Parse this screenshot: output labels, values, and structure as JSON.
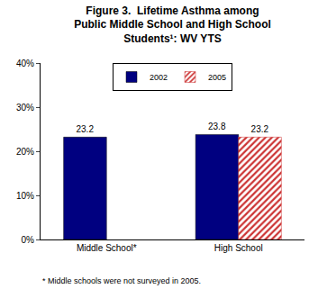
{
  "chart_data": {
    "type": "bar",
    "title": "Figure 3.  Lifetime Asthma among\nPublic Middle School and High School\nStudents¹: WV YTS",
    "categories": [
      "Middle School*",
      "High School"
    ],
    "series": [
      {
        "name": "2002",
        "color": "#000080",
        "values": [
          23.2,
          23.8
        ]
      },
      {
        "name": "2005",
        "color": "#cc3333",
        "marker": "hatched",
        "values": [
          null,
          23.2
        ]
      }
    ],
    "ylim": [
      0,
      40
    ],
    "yticks": [
      {
        "value": 0,
        "label": "0%"
      },
      {
        "value": 10,
        "label": "10%"
      },
      {
        "value": 20,
        "label": "20%"
      },
      {
        "value": 30,
        "label": "30%"
      },
      {
        "value": 40,
        "label": "40%"
      }
    ],
    "grid": false,
    "legend": "top",
    "data_labels": true,
    "annotations": [
      "* Middle schools were not surveyed in 2005."
    ]
  }
}
